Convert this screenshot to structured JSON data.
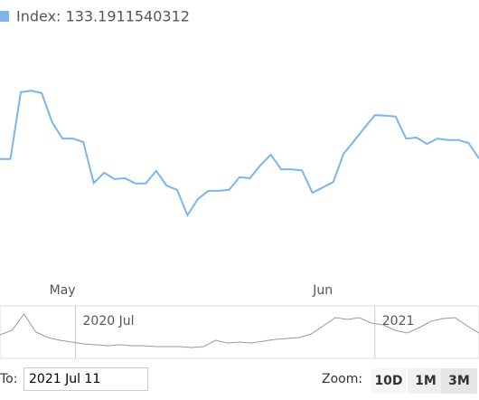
{
  "chart_data": [
    {
      "type": "line",
      "legend_label": "Index: 133.1911540312",
      "categories": [
        null,
        null,
        null,
        null,
        null,
        null,
        "May",
        null,
        null,
        null,
        null,
        null,
        null,
        null,
        null,
        null,
        null,
        null,
        null,
        null,
        null,
        null,
        null,
        null,
        null,
        null,
        null,
        null,
        null,
        null,
        null,
        "Jun",
        null,
        null,
        null,
        null,
        null,
        null,
        null,
        null,
        null,
        null,
        null,
        null,
        null,
        null,
        null
      ],
      "series": [
        {
          "name": "Index",
          "color": "#7cb5ec",
          "values": [
            133.0,
            133.0,
            146.7,
            147.0,
            146.5,
            140.6,
            137.2,
            137.2,
            136.5,
            128.1,
            130.2,
            128.9,
            129.1,
            128.0,
            128.0,
            130.6,
            127.6,
            126.7,
            121.5,
            124.8,
            126.5,
            126.5,
            126.7,
            129.3,
            129.1,
            131.7,
            133.9,
            130.9,
            130.9,
            130.7,
            126.1,
            127.2,
            128.3,
            134.1,
            136.7,
            139.4,
            142.0,
            141.9,
            141.7,
            137.2,
            137.4,
            136.1,
            137.2,
            136.9,
            136.9,
            136.3,
            133.1
          ]
        }
      ],
      "ylim": [
        110,
        160
      ],
      "grid": false
    },
    {
      "type": "navigator",
      "categories": [
        null,
        null,
        null,
        null,
        null,
        null,
        "2020 Jul",
        null,
        null,
        null,
        null,
        null,
        null,
        null,
        null,
        null,
        null,
        null,
        null,
        null,
        null,
        null,
        null,
        null,
        null,
        null,
        null,
        null,
        null,
        null,
        null,
        "2021",
        null,
        null,
        null,
        null,
        null,
        null,
        null,
        null,
        null
      ],
      "series": [
        {
          "name": "Index",
          "color": "#999999",
          "values": [
            25,
            30,
            48,
            28,
            22,
            19,
            17,
            15,
            14,
            13,
            14,
            13,
            13,
            12,
            12,
            12,
            11,
            12,
            19,
            16,
            17,
            16,
            18,
            20,
            21,
            22,
            26,
            35,
            44,
            42,
            44,
            38,
            36,
            30,
            27,
            33,
            40,
            43,
            44,
            35,
            27
          ]
        }
      ],
      "ylim": [
        0,
        55
      ]
    }
  ],
  "controls": {
    "to_label": "To:",
    "to_value": "2021 Jul 11",
    "zoom_label": "Zoom:",
    "buttons": [
      "10D",
      "1M",
      "3M"
    ]
  }
}
